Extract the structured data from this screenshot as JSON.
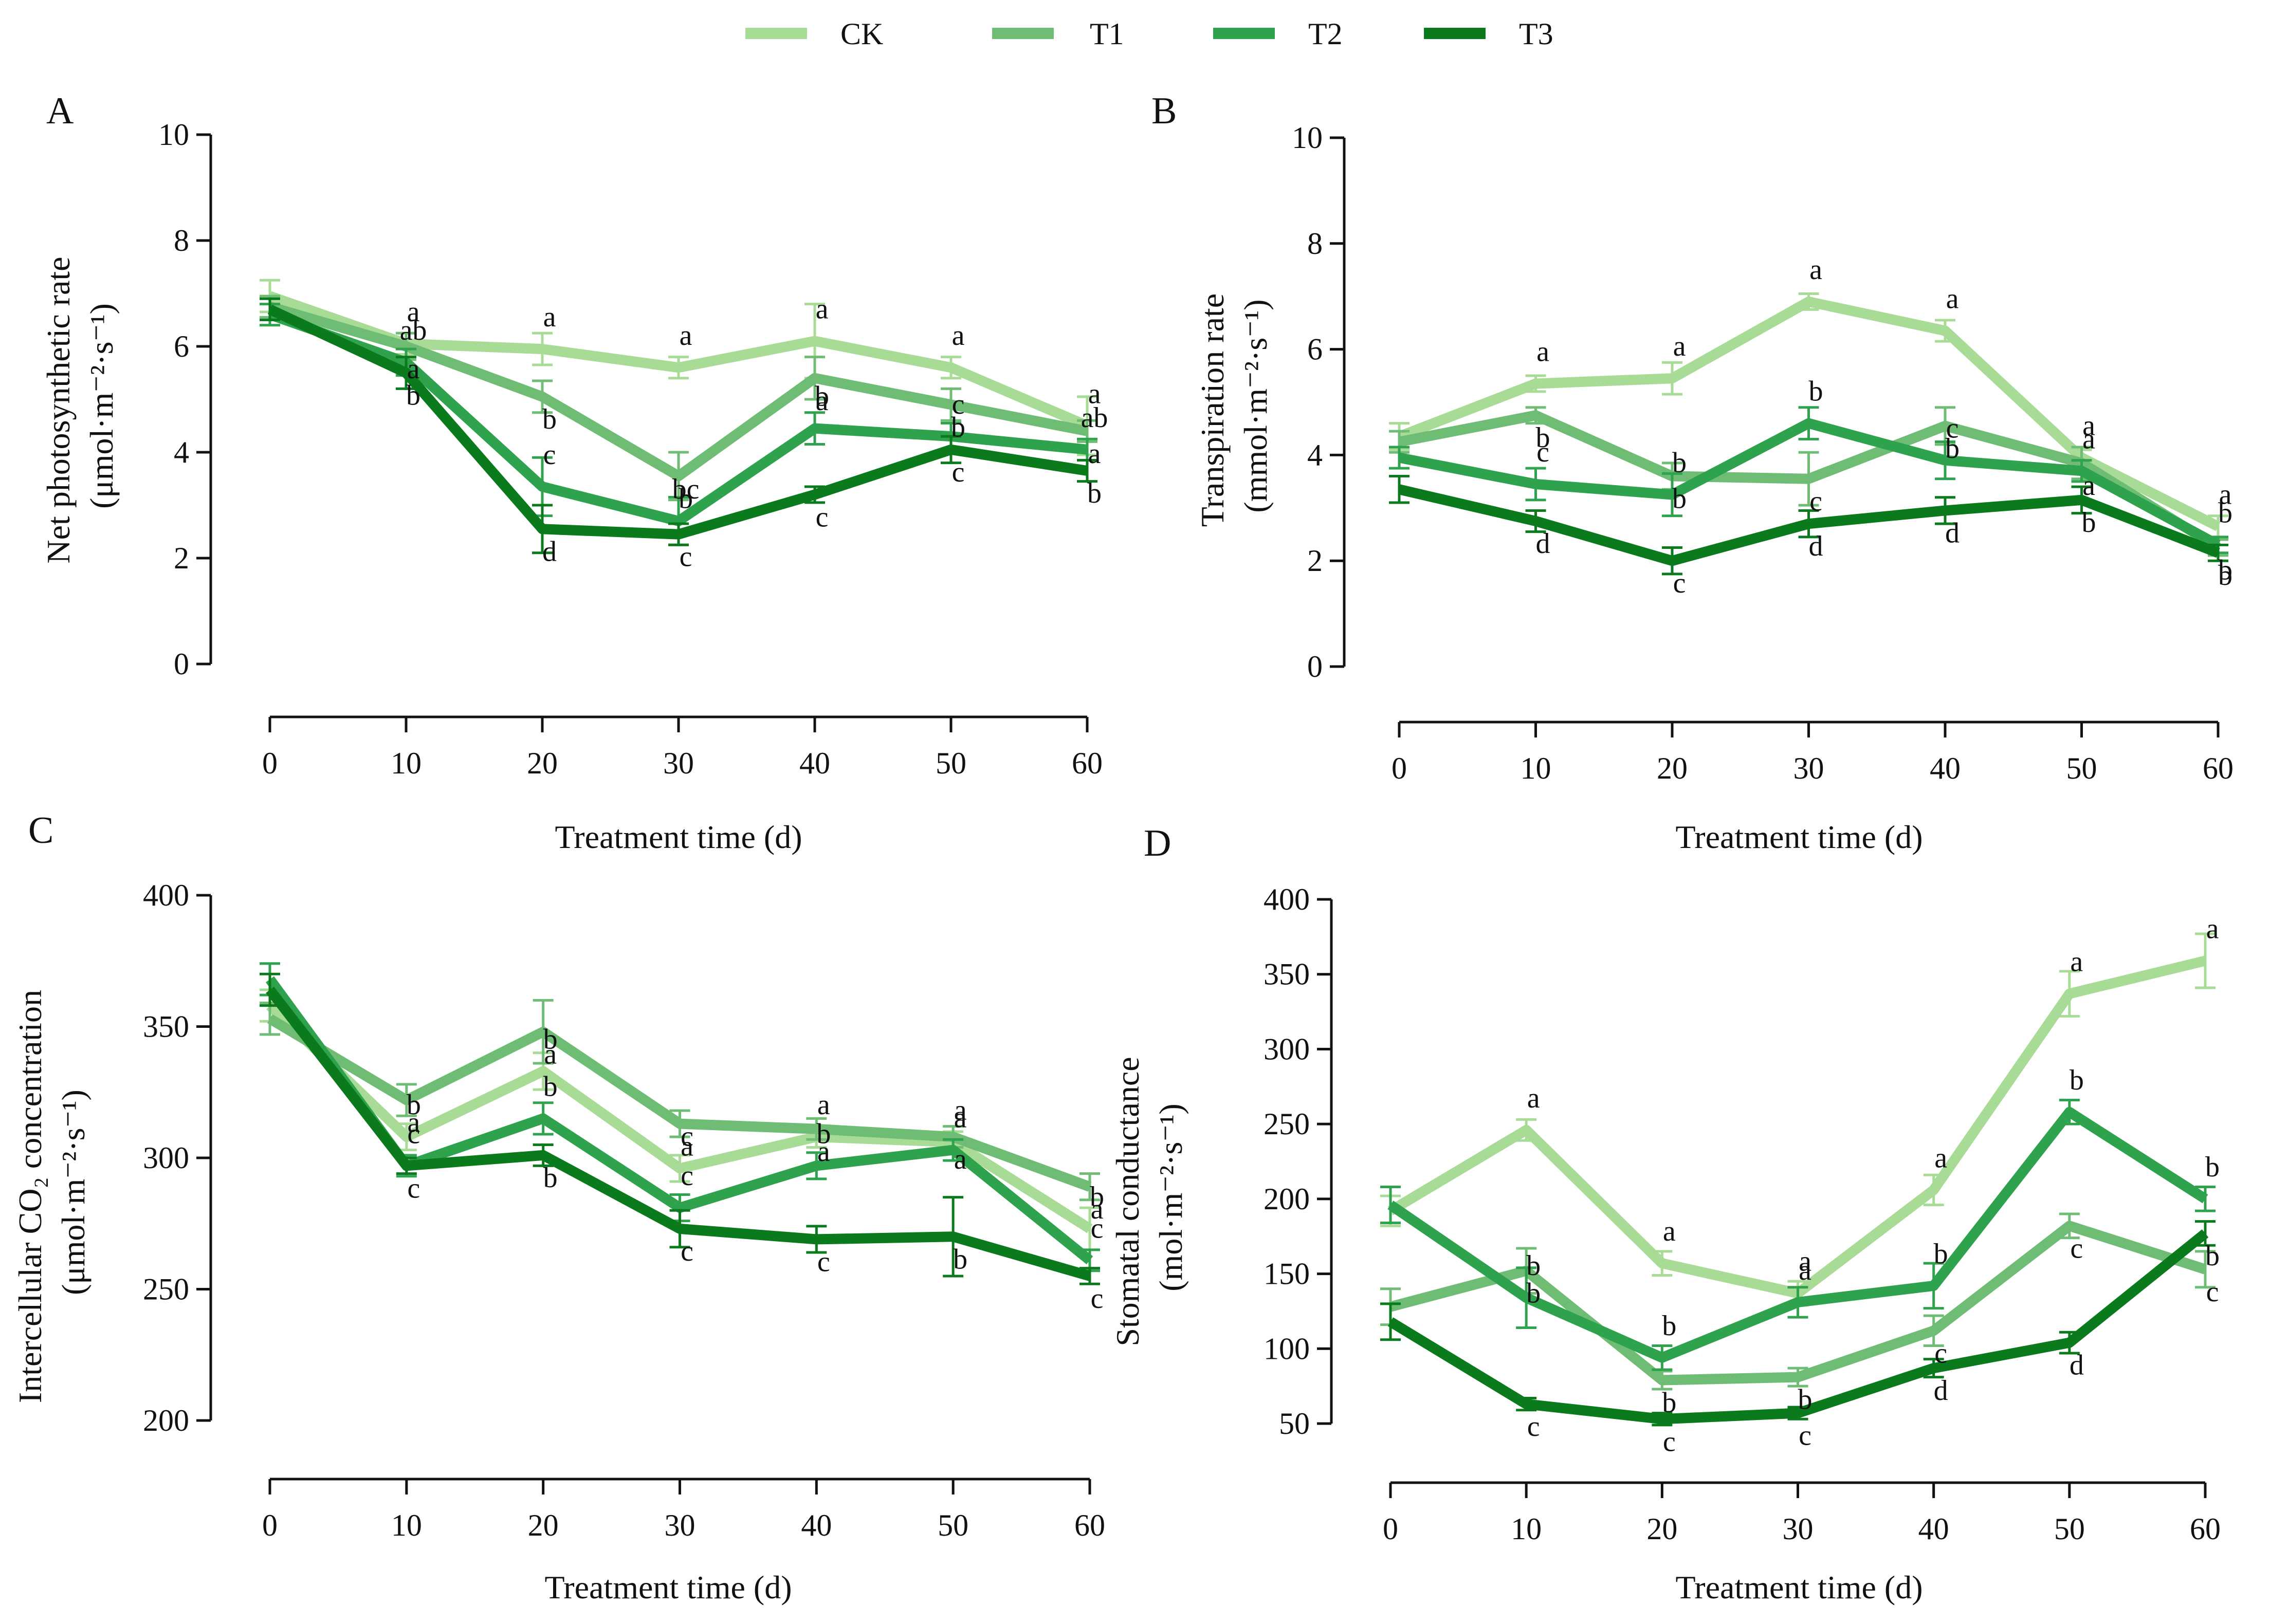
{
  "legend": [
    {
      "name": "CK",
      "color": "#a8dc96"
    },
    {
      "name": "T1",
      "color": "#6fbd74"
    },
    {
      "name": "T2",
      "color": "#2ea24d"
    },
    {
      "name": "T3",
      "color": "#0a7a1c"
    }
  ],
  "chart_data": [
    {
      "type": "line",
      "panel": "A",
      "ylabel_line1": "Net photosynthetic rate",
      "ylabel_line2": "(μmol·m⁻²·s⁻¹)",
      "xlabel": "Treatment time (d)",
      "x": [
        0,
        10,
        20,
        30,
        40,
        50,
        60
      ],
      "xticks": [
        "0",
        "10",
        "20",
        "30",
        "40",
        "50",
        "60"
      ],
      "ylim": [
        0,
        10
      ],
      "yticks": [
        "0",
        "2",
        "4",
        "6",
        "8",
        "10"
      ],
      "series": [
        {
          "name": "CK",
          "values": [
            6.95,
            6.05,
            5.95,
            5.6,
            6.1,
            5.6,
            4.5
          ],
          "err": [
            0.3,
            0.2,
            0.3,
            0.2,
            0.7,
            0.2,
            0.55
          ],
          "letters": [
            "",
            "a",
            "a",
            "a",
            "a",
            "a",
            "a"
          ]
        },
        {
          "name": "T1",
          "values": [
            6.75,
            6.0,
            5.05,
            3.55,
            5.4,
            4.9,
            4.4
          ],
          "err": [
            0.2,
            0.25,
            0.3,
            0.45,
            0.4,
            0.3,
            0.2
          ],
          "letters": [
            "",
            "a",
            "b",
            "b",
            "a",
            "b",
            "a"
          ]
        },
        {
          "name": "T2",
          "values": [
            6.6,
            5.7,
            3.35,
            2.7,
            4.45,
            4.3,
            4.05
          ],
          "err": [
            0.2,
            0.25,
            0.55,
            0.45,
            0.3,
            0.25,
            0.2
          ],
          "letters": [
            "",
            "ab",
            "c",
            "bc",
            "b",
            "c",
            "ab"
          ]
        },
        {
          "name": "T3",
          "values": [
            6.7,
            5.5,
            2.55,
            2.45,
            3.2,
            4.05,
            3.65
          ],
          "err": [
            0.2,
            0.3,
            0.45,
            0.2,
            0.15,
            0.25,
            0.2
          ],
          "letters": [
            "",
            "b",
            "d",
            "c",
            "c",
            "c",
            "b"
          ]
        }
      ]
    },
    {
      "type": "line",
      "panel": "B",
      "ylabel_line1": "Transpiration rate",
      "ylabel_line2": "(mmol·m⁻²·s⁻¹)",
      "xlabel": "Treatment time (d)",
      "x": [
        0,
        10,
        20,
        30,
        40,
        50,
        60
      ],
      "xticks": [
        "0",
        "10",
        "20",
        "30",
        "40",
        "50",
        "60"
      ],
      "ylim": [
        0,
        10
      ],
      "yticks": [
        "0",
        "2",
        "4",
        "6",
        "8",
        "10"
      ],
      "series": [
        {
          "name": "CK",
          "values": [
            4.35,
            5.35,
            5.45,
            6.9,
            6.35,
            3.95,
            2.65
          ],
          "err": [
            0.25,
            0.15,
            0.3,
            0.15,
            0.2,
            0.15,
            0.2
          ],
          "letters": [
            "",
            "a",
            "a",
            "a",
            "a",
            "a",
            "a"
          ]
        },
        {
          "name": "T1",
          "values": [
            4.25,
            4.75,
            3.6,
            3.55,
            4.55,
            3.85,
            2.25
          ],
          "err": [
            0.2,
            0.15,
            0.25,
            0.5,
            0.35,
            0.3,
            0.15
          ],
          "letters": [
            "",
            "b",
            "b",
            "c",
            "b",
            "a",
            "b"
          ]
        },
        {
          "name": "T2",
          "values": [
            3.95,
            3.45,
            3.25,
            4.6,
            3.9,
            3.7,
            2.3
          ],
          "err": [
            0.2,
            0.3,
            0.4,
            0.3,
            0.35,
            0.2,
            0.15
          ],
          "letters": [
            "",
            "c",
            "b",
            "b",
            "c",
            "a",
            "b"
          ]
        },
        {
          "name": "T3",
          "values": [
            3.35,
            2.75,
            2.0,
            2.7,
            2.95,
            3.15,
            2.15
          ],
          "err": [
            0.25,
            0.2,
            0.25,
            0.25,
            0.25,
            0.25,
            0.15
          ],
          "letters": [
            "",
            "d",
            "c",
            "d",
            "d",
            "b",
            "b"
          ]
        }
      ]
    },
    {
      "type": "line",
      "panel": "C",
      "ylabel_line1": "Intercellular CO₂ concentration",
      "ylabel_line2": "(μmol·m⁻²·s⁻¹)",
      "xlabel": "Treatment time (d)",
      "x": [
        0,
        10,
        20,
        30,
        40,
        50,
        60
      ],
      "xticks": [
        "0",
        "10",
        "20",
        "30",
        "40",
        "50",
        "60"
      ],
      "ylim": [
        200,
        400
      ],
      "yticks": [
        "200",
        "250",
        "300",
        "350",
        "400"
      ],
      "series": [
        {
          "name": "CK",
          "values": [
            358,
            308,
            333,
            296,
            308,
            306,
            273
          ],
          "err": [
            6,
            5,
            7,
            5,
            4,
            4,
            8
          ],
          "letters": [
            "",
            "b",
            "b",
            "c",
            "a",
            "a",
            "b"
          ]
        },
        {
          "name": "T1",
          "values": [
            353,
            322,
            348,
            313,
            311,
            308,
            289
          ],
          "err": [
            6,
            6,
            12,
            5,
            4,
            4,
            5
          ],
          "letters": [
            "",
            "a",
            "a",
            "a",
            "a",
            "a",
            "a"
          ]
        },
        {
          "name": "T2",
          "values": [
            368,
            297,
            315,
            281,
            297,
            303,
            261
          ],
          "err": [
            6,
            4,
            6,
            5,
            5,
            4,
            4
          ],
          "letters": [
            "",
            "c",
            "b",
            "c",
            "b",
            "a",
            "c"
          ]
        },
        {
          "name": "T3",
          "values": [
            364,
            297,
            301,
            273,
            269,
            270,
            255
          ],
          "err": [
            6,
            3,
            4,
            7,
            5,
            15,
            3
          ],
          "letters": [
            "",
            "c",
            "b",
            "c",
            "c",
            "b",
            "c"
          ]
        }
      ]
    },
    {
      "type": "line",
      "panel": "D",
      "ylabel_line1": "Stomatal conductance",
      "ylabel_line2": "(mol·m⁻²·s⁻¹)",
      "xlabel": "Treatment time (d)",
      "x": [
        0,
        10,
        20,
        30,
        40,
        50,
        60
      ],
      "xticks": [
        "0",
        "10",
        "20",
        "30",
        "40",
        "50",
        "60"
      ],
      "ylim": [
        50,
        400
      ],
      "yticks": [
        "50",
        "100",
        "150",
        "200",
        "250",
        "300",
        "350",
        "400"
      ],
      "series": [
        {
          "name": "CK",
          "values": [
            192,
            246,
            157,
            137,
            206,
            337,
            359
          ],
          "err": [
            10,
            7,
            8,
            8,
            10,
            15,
            18
          ],
          "letters": [
            "",
            "a",
            "a",
            "a",
            "a",
            "a",
            "a"
          ]
        },
        {
          "name": "T1",
          "values": [
            128,
            152,
            79,
            81,
            112,
            182,
            153
          ],
          "err": [
            12,
            15,
            6,
            6,
            10,
            8,
            12
          ],
          "letters": [
            "",
            "b",
            "b",
            "b",
            "c",
            "c",
            "c"
          ]
        },
        {
          "name": "T2",
          "values": [
            196,
            134,
            94,
            131,
            142,
            258,
            200
          ],
          "err": [
            12,
            20,
            8,
            10,
            15,
            8,
            8
          ],
          "letters": [
            "",
            "b",
            "b",
            "a",
            "b",
            "b",
            "b"
          ]
        },
        {
          "name": "T3",
          "values": [
            118,
            63,
            53,
            57,
            87,
            104,
            177
          ],
          "err": [
            12,
            4,
            4,
            4,
            6,
            7,
            8
          ],
          "letters": [
            "",
            "c",
            "c",
            "c",
            "d",
            "d",
            "b"
          ]
        }
      ]
    }
  ]
}
